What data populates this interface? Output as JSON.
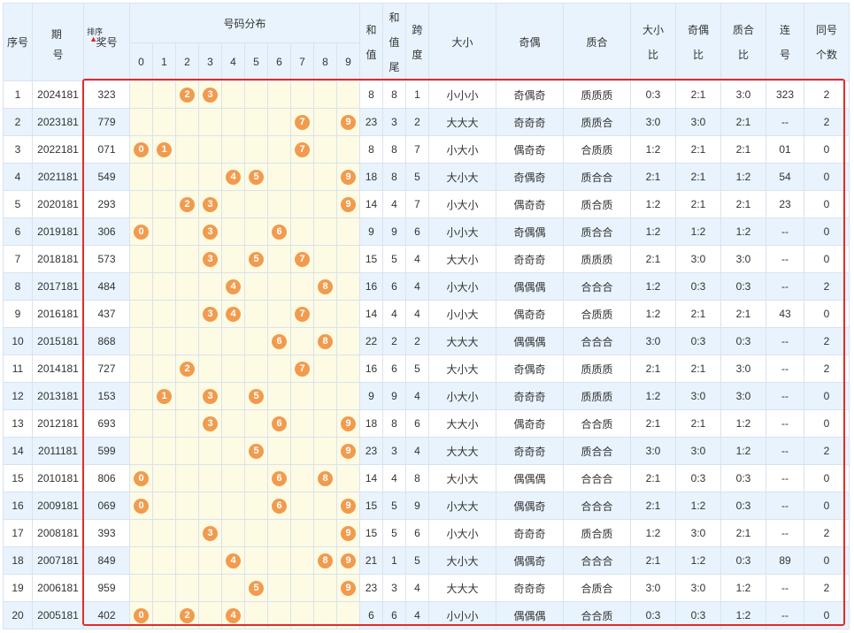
{
  "header": {
    "seq": "序号",
    "period_line1": "期",
    "period_line2": "号",
    "sort_label": "排序",
    "prize": "奖号",
    "distribution": "号码分布",
    "digits": [
      "0",
      "1",
      "2",
      "3",
      "4",
      "5",
      "6",
      "7",
      "8",
      "9"
    ],
    "sum_value": "和\n值",
    "sum_tail": "和\n值\n尾",
    "span": "跨\n度",
    "size": "大小",
    "odd_even": "奇偶",
    "prime_comp": "质合",
    "size_ratio": "大小\n比",
    "oe_ratio": "奇偶\n比",
    "pc_ratio": "质合\n比",
    "consecutive": "连\n号",
    "same_count": "同号\n个数"
  },
  "rows": [
    {
      "seq": "1",
      "period": "2024181",
      "prize": "323",
      "balls": [
        "2",
        "3"
      ],
      "sum": "8",
      "tail": "8",
      "span": "1",
      "size": "小小小",
      "oe": "奇偶奇",
      "pc": "质质质",
      "sr": "0:3",
      "or": "2:1",
      "pr": "3:0",
      "cons": "323",
      "same": "2"
    },
    {
      "seq": "2",
      "period": "2023181",
      "prize": "779",
      "balls": [
        "7",
        "9"
      ],
      "sum": "23",
      "tail": "3",
      "span": "2",
      "size": "大大大",
      "oe": "奇奇奇",
      "pc": "质质合",
      "sr": "3:0",
      "or": "3:0",
      "pr": "2:1",
      "cons": "--",
      "same": "2"
    },
    {
      "seq": "3",
      "period": "2022181",
      "prize": "071",
      "balls": [
        "0",
        "1",
        "7"
      ],
      "sum": "8",
      "tail": "8",
      "span": "7",
      "size": "小大小",
      "oe": "偶奇奇",
      "pc": "合质质",
      "sr": "1:2",
      "or": "2:1",
      "pr": "2:1",
      "cons": "01",
      "same": "0"
    },
    {
      "seq": "4",
      "period": "2021181",
      "prize": "549",
      "balls": [
        "4",
        "5",
        "9"
      ],
      "sum": "18",
      "tail": "8",
      "span": "5",
      "size": "大小大",
      "oe": "奇偶奇",
      "pc": "质合合",
      "sr": "2:1",
      "or": "2:1",
      "pr": "1:2",
      "cons": "54",
      "same": "0"
    },
    {
      "seq": "5",
      "period": "2020181",
      "prize": "293",
      "balls": [
        "2",
        "3",
        "9"
      ],
      "sum": "14",
      "tail": "4",
      "span": "7",
      "size": "小大小",
      "oe": "偶奇奇",
      "pc": "质合质",
      "sr": "1:2",
      "or": "2:1",
      "pr": "2:1",
      "cons": "23",
      "same": "0"
    },
    {
      "seq": "6",
      "period": "2019181",
      "prize": "306",
      "balls": [
        "0",
        "3",
        "6"
      ],
      "sum": "9",
      "tail": "9",
      "span": "6",
      "size": "小小大",
      "oe": "奇偶偶",
      "pc": "质合合",
      "sr": "1:2",
      "or": "1:2",
      "pr": "1:2",
      "cons": "--",
      "same": "0"
    },
    {
      "seq": "7",
      "period": "2018181",
      "prize": "573",
      "balls": [
        "3",
        "5",
        "7"
      ],
      "sum": "15",
      "tail": "5",
      "span": "4",
      "size": "大大小",
      "oe": "奇奇奇",
      "pc": "质质质",
      "sr": "2:1",
      "or": "3:0",
      "pr": "3:0",
      "cons": "--",
      "same": "0"
    },
    {
      "seq": "8",
      "period": "2017181",
      "prize": "484",
      "balls": [
        "4",
        "8"
      ],
      "sum": "16",
      "tail": "6",
      "span": "4",
      "size": "小大小",
      "oe": "偶偶偶",
      "pc": "合合合",
      "sr": "1:2",
      "or": "0:3",
      "pr": "0:3",
      "cons": "--",
      "same": "2"
    },
    {
      "seq": "9",
      "period": "2016181",
      "prize": "437",
      "balls": [
        "3",
        "4",
        "7"
      ],
      "sum": "14",
      "tail": "4",
      "span": "4",
      "size": "小小大",
      "oe": "偶奇奇",
      "pc": "合质质",
      "sr": "1:2",
      "or": "2:1",
      "pr": "2:1",
      "cons": "43",
      "same": "0"
    },
    {
      "seq": "10",
      "period": "2015181",
      "prize": "868",
      "balls": [
        "6",
        "8"
      ],
      "sum": "22",
      "tail": "2",
      "span": "2",
      "size": "大大大",
      "oe": "偶偶偶",
      "pc": "合合合",
      "sr": "3:0",
      "or": "0:3",
      "pr": "0:3",
      "cons": "--",
      "same": "2"
    },
    {
      "seq": "11",
      "period": "2014181",
      "prize": "727",
      "balls": [
        "2",
        "7"
      ],
      "sum": "16",
      "tail": "6",
      "span": "5",
      "size": "大小大",
      "oe": "奇偶奇",
      "pc": "质质质",
      "sr": "2:1",
      "or": "2:1",
      "pr": "3:0",
      "cons": "--",
      "same": "2"
    },
    {
      "seq": "12",
      "period": "2013181",
      "prize": "153",
      "balls": [
        "1",
        "3",
        "5"
      ],
      "sum": "9",
      "tail": "9",
      "span": "4",
      "size": "小大小",
      "oe": "奇奇奇",
      "pc": "质质质",
      "sr": "1:2",
      "or": "3:0",
      "pr": "3:0",
      "cons": "--",
      "same": "0"
    },
    {
      "seq": "13",
      "period": "2012181",
      "prize": "693",
      "balls": [
        "3",
        "6",
        "9"
      ],
      "sum": "18",
      "tail": "8",
      "span": "6",
      "size": "大大小",
      "oe": "偶奇奇",
      "pc": "合合质",
      "sr": "2:1",
      "or": "2:1",
      "pr": "1:2",
      "cons": "--",
      "same": "0"
    },
    {
      "seq": "14",
      "period": "2011181",
      "prize": "599",
      "balls": [
        "5",
        "9"
      ],
      "sum": "23",
      "tail": "3",
      "span": "4",
      "size": "大大大",
      "oe": "奇奇奇",
      "pc": "质合合",
      "sr": "3:0",
      "or": "3:0",
      "pr": "1:2",
      "cons": "--",
      "same": "2"
    },
    {
      "seq": "15",
      "period": "2010181",
      "prize": "806",
      "balls": [
        "0",
        "6",
        "8"
      ],
      "sum": "14",
      "tail": "4",
      "span": "8",
      "size": "大小大",
      "oe": "偶偶偶",
      "pc": "合合合",
      "sr": "2:1",
      "or": "0:3",
      "pr": "0:3",
      "cons": "--",
      "same": "0"
    },
    {
      "seq": "16",
      "period": "2009181",
      "prize": "069",
      "balls": [
        "0",
        "6",
        "9"
      ],
      "sum": "15",
      "tail": "5",
      "span": "9",
      "size": "小大大",
      "oe": "偶偶奇",
      "pc": "合合合",
      "sr": "2:1",
      "or": "1:2",
      "pr": "0:3",
      "cons": "--",
      "same": "0"
    },
    {
      "seq": "17",
      "period": "2008181",
      "prize": "393",
      "balls": [
        "3",
        "9"
      ],
      "sum": "15",
      "tail": "5",
      "span": "6",
      "size": "小大小",
      "oe": "奇奇奇",
      "pc": "质合质",
      "sr": "1:2",
      "or": "3:0",
      "pr": "2:1",
      "cons": "--",
      "same": "2"
    },
    {
      "seq": "18",
      "period": "2007181",
      "prize": "849",
      "balls": [
        "4",
        "8",
        "9"
      ],
      "sum": "21",
      "tail": "1",
      "span": "5",
      "size": "大小大",
      "oe": "偶偶奇",
      "pc": "合合合",
      "sr": "2:1",
      "or": "1:2",
      "pr": "0:3",
      "cons": "89",
      "same": "0"
    },
    {
      "seq": "19",
      "period": "2006181",
      "prize": "959",
      "balls": [
        "5",
        "9"
      ],
      "sum": "23",
      "tail": "3",
      "span": "4",
      "size": "大大大",
      "oe": "奇奇奇",
      "pc": "合质合",
      "sr": "3:0",
      "or": "3:0",
      "pr": "1:2",
      "cons": "--",
      "same": "2"
    },
    {
      "seq": "20",
      "period": "2005181",
      "prize": "402",
      "balls": [
        "0",
        "2",
        "4"
      ],
      "sum": "6",
      "tail": "6",
      "span": "4",
      "size": "小小小",
      "oe": "偶偶偶",
      "pc": "合合质",
      "sr": "0:3",
      "or": "0:3",
      "pr": "1:2",
      "cons": "--",
      "same": "0"
    }
  ],
  "colors": {
    "ball": "#f19b4e",
    "highlight_border": "#e42b2b",
    "header_bg": "#e8f3fd",
    "digit_col_bg": "#fdfbe4"
  }
}
